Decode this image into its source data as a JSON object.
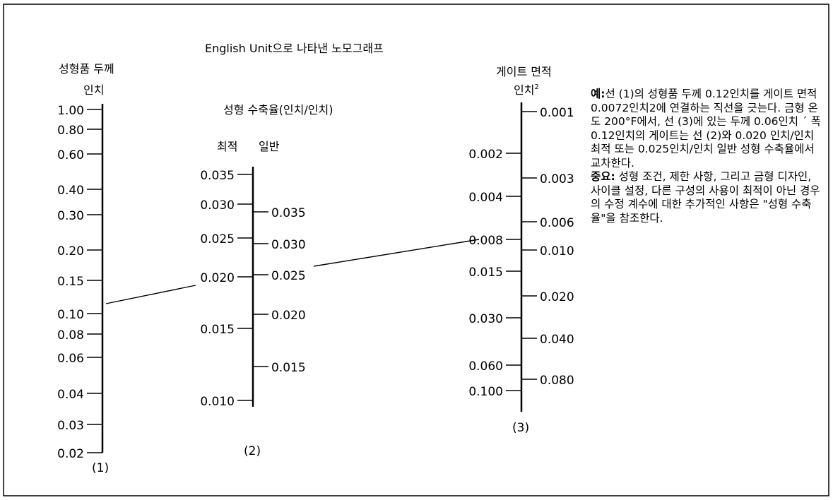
{
  "title": "English Unit으로 나타낸 노모그래프",
  "scale1": {
    "header_line1": "성형품 두께",
    "header_line2": "인치",
    "number": "(1)",
    "ticks": [
      "1.00",
      "0.80",
      "0.60",
      "0.40",
      "0.30",
      "0.20",
      "0.15",
      "0.10",
      "0.08",
      "0.06",
      "0.04",
      "0.03",
      "0.02"
    ]
  },
  "scale2": {
    "header": "성형 수축율(인치/인치)",
    "sub_left": "최적",
    "sub_right": "일반",
    "number": "(2)",
    "ticks_left": [
      "0.035",
      "0.030",
      "0.025",
      "0.020",
      "0.015",
      "0.010"
    ],
    "ticks_right": [
      "0.035",
      "0.030",
      "0.025",
      "0.020",
      "0.015"
    ]
  },
  "scale3": {
    "header_line1": "게이트 면적",
    "header_line2": "인치",
    "header_sup": "2",
    "number": "(3)",
    "ticks_left": [
      "0.002",
      "0.004",
      "0.008",
      "0.015",
      "0.030",
      "0.060",
      "0.100"
    ],
    "ticks_right": [
      "0.001",
      "0.003",
      "0.006",
      "0.010",
      "0.020",
      "0.040",
      "0.080"
    ]
  },
  "notes": {
    "example_label": "예:",
    "example_text": "선 (1)의 성형품 두께 0.12인치를 게이트 면적 0.0072인치2에 연결하는 직선을 긋는다. 금형 온도 200°F에서, 선 (3)에 있는 두께 0.06인치 ´ 폭 0.12인치의 게이트는 선 (2)와 0.020 인치/인치 최적 또는 0.025인치/인치 일반 성형 수축율에서 교차한다.",
    "important_label": "중요:",
    "important_text": "성형 조건, 제한 사항, 그리고 금형 디자인, 사이클 설정, 다른 구성의 사용이 최적이 아닌 경우의 수정 계수에 대한 추가적인 사항은 \"성형 수축율\"을 참조한다."
  },
  "example_line": {
    "thickness_in": 0.12,
    "gate_area_in2": 0.0072,
    "shrinkage_optimum": 0.02,
    "shrinkage_general": 0.025
  }
}
